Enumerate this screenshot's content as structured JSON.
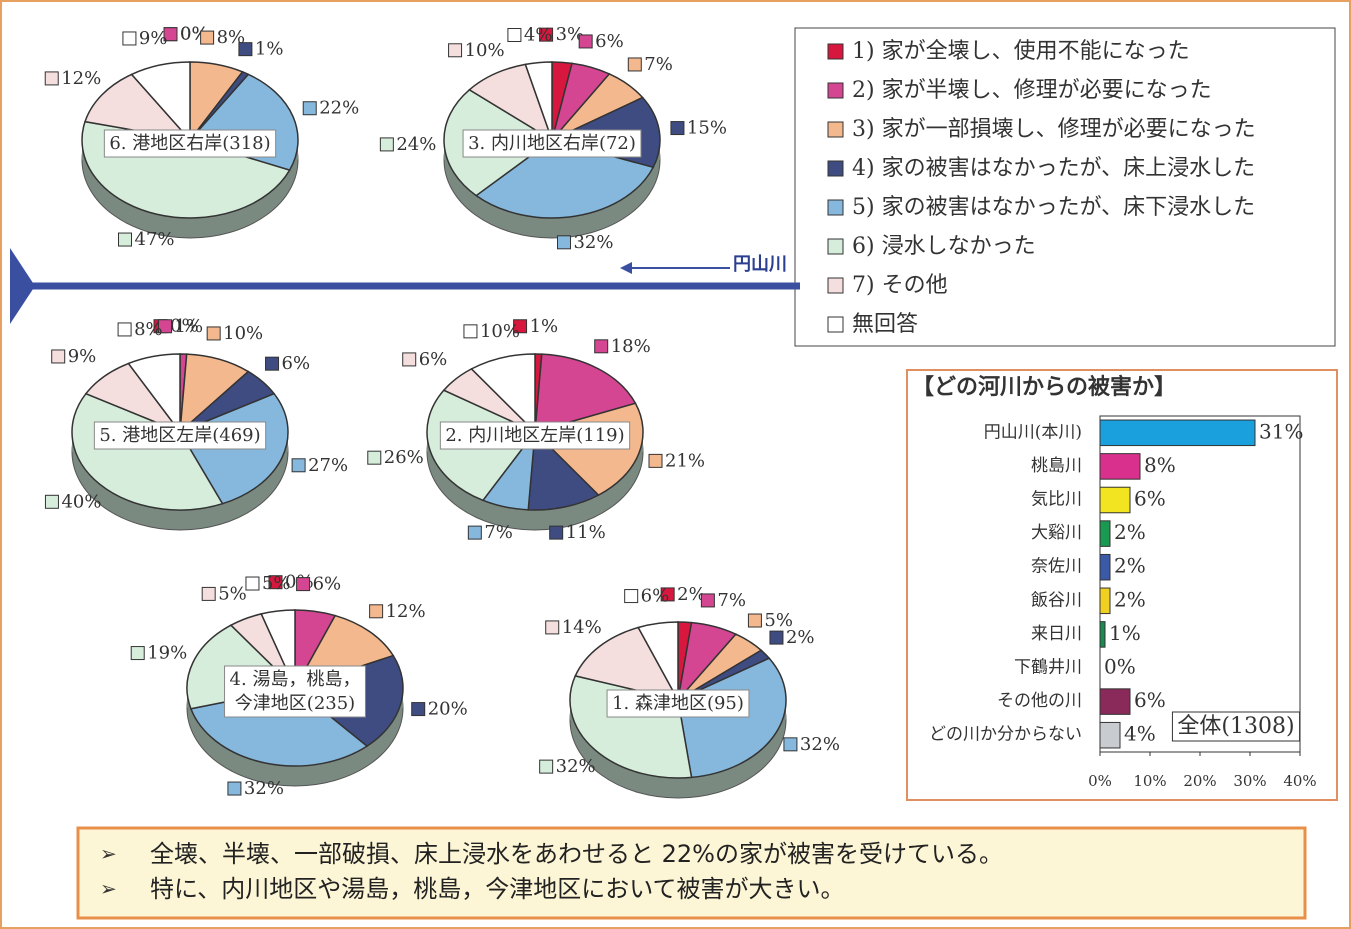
{
  "legend": {
    "labels": [
      "1) 家が全壊し、使用不能になった",
      "2) 家が半壊し、修理が必要になった",
      "3) 家が一部損壊し、修理が必要になった",
      "4) 家の被害はなかったが、床上浸水した",
      "5) 家の被害はなかったが、床下浸水した",
      "6) 浸水しなかった",
      "7) その他",
      "無回答"
    ],
    "colors": [
      "#d8173e",
      "#d44592",
      "#f4b88e",
      "#3f4c82",
      "#86b8de",
      "#d6eddb",
      "#f5dede",
      "#ffffff"
    ]
  },
  "river": "円山川",
  "chart_data": [
    {
      "type": "pie",
      "title": "6. 港地区右岸(318)",
      "values": [
        0,
        0,
        8,
        1,
        22,
        47,
        12,
        9
      ],
      "value_labels": [
        "0%",
        "0%",
        "8%",
        "1%",
        "22%",
        "47%",
        "12%",
        "9%"
      ]
    },
    {
      "type": "pie",
      "title": "3. 内川地区右岸(72)",
      "values": [
        3,
        6,
        7,
        15,
        32,
        24,
        10,
        4
      ],
      "value_labels": [
        "3%",
        "6%",
        "7%",
        "15%",
        "32%",
        "24%",
        "10%",
        "4%"
      ]
    },
    {
      "type": "pie",
      "title": "5. 港地区左岸(469)",
      "values": [
        0,
        1,
        10,
        6,
        27,
        40,
        9,
        8
      ],
      "value_labels": [
        "0%",
        "1%",
        "10%",
        "6%",
        "27%",
        "40%",
        "9%",
        "8%"
      ]
    },
    {
      "type": "pie",
      "title": "2. 内川地区左岸(119)",
      "values": [
        1,
        18,
        21,
        11,
        7,
        26,
        6,
        10
      ],
      "value_labels": [
        "1%",
        "18%",
        "21%",
        "11%",
        "7%",
        "26%",
        "6%",
        "10%"
      ]
    },
    {
      "type": "pie",
      "title": "4. 湯島，桃島，\n今津地区(235)",
      "values": [
        0,
        6,
        12,
        20,
        32,
        19,
        5,
        5
      ],
      "value_labels": [
        "0%",
        "6%",
        "12%",
        "20%",
        "32%",
        "19%",
        "5%",
        "5%"
      ]
    },
    {
      "type": "pie",
      "title": "1. 森津地区(95)",
      "values": [
        2,
        7,
        5,
        2,
        32,
        32,
        14,
        6
      ],
      "value_labels": [
        "2%",
        "7%",
        "5%",
        "2%",
        "32%",
        "32%",
        "14%",
        "6%"
      ]
    },
    {
      "type": "hbar",
      "title": "【どの河川からの被害か】",
      "categories": [
        "円山川(本川)",
        "桃島川",
        "気比川",
        "大谿川",
        "奈佐川",
        "飯谷川",
        "来日川",
        "下鶴井川",
        "その他の川",
        "どの川か分からない"
      ],
      "values": [
        31,
        8,
        6,
        2,
        2,
        2,
        1,
        0,
        6,
        4
      ],
      "value_labels": [
        "31%",
        "8%",
        "6%",
        "2%",
        "2%",
        "2%",
        "1%",
        "0%",
        "6%",
        "4%"
      ],
      "colors": [
        "#1aa0dc",
        "#d8308c",
        "#f2e420",
        "#1a9a50",
        "#3a5aa8",
        "#f0d020",
        "#1a8a50",
        "#ffffff",
        "#8a2a5a",
        "#c8ccd0"
      ],
      "xlim": [
        0,
        40
      ],
      "xticks": [
        {
          "value": 0,
          "label": "0%"
        },
        {
          "value": 10,
          "label": "10%"
        },
        {
          "value": 20,
          "label": "20%"
        },
        {
          "value": 30,
          "label": "30%"
        },
        {
          "value": 40,
          "label": "40%"
        }
      ],
      "annotation": "全体(1308)"
    }
  ],
  "notes": [
    "全壊、半壊、一部破損、床上浸水をあわせると 22%の家が被害を受けている。",
    "特に、内川地区や湯島，桃島，今津地区において被害が大きい。"
  ]
}
